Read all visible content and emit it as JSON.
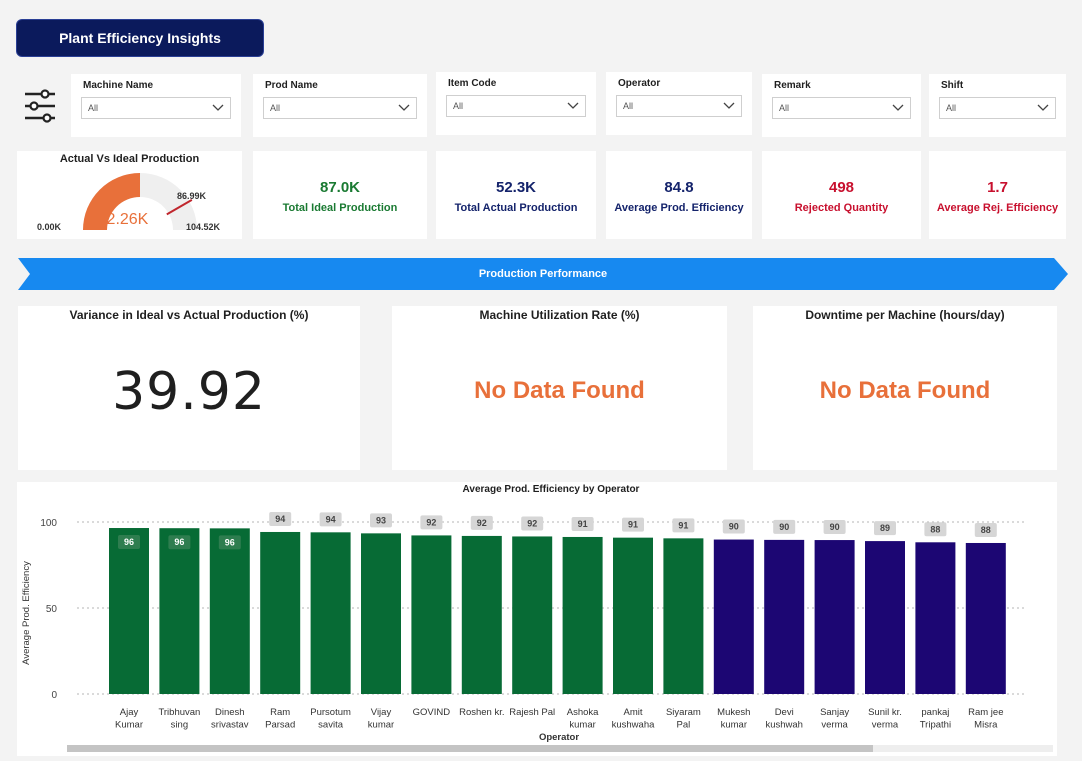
{
  "title": "Plant Efficiency Insights",
  "icons": {
    "filter": "sliders-filter-icon",
    "dropdown": "chevron-down-icon"
  },
  "filters": [
    {
      "label": "Machine Name",
      "value": "All"
    },
    {
      "label": "Prod Name",
      "value": "All"
    },
    {
      "label": "Item Code",
      "value": "All"
    },
    {
      "label": "Operator",
      "value": "All"
    },
    {
      "label": "Remark",
      "value": "All"
    },
    {
      "label": "Shift",
      "value": "All"
    }
  ],
  "gauge": {
    "title": "Actual Vs Ideal Production",
    "value": 52.26,
    "value_label": "52.26K",
    "min": 0,
    "min_label": "0.00K",
    "max": 104.52,
    "max_label": "104.52K",
    "target": 86.99,
    "target_label": "86.99K",
    "fill_color": "#e8703a",
    "track_color": "#efefef",
    "target_color": "#c0262d"
  },
  "kpis": [
    {
      "value": "87.0K",
      "label": "Total Ideal Production",
      "color": "#1a7a32"
    },
    {
      "value": "52.3K",
      "label": "Total Actual Production",
      "color": "#14236b"
    },
    {
      "value": "84.8",
      "label": "Average Prod. Efficiency",
      "color": "#14236b"
    },
    {
      "value": "498",
      "label": "Rejected Quantity",
      "color": "#c8102e"
    },
    {
      "value": "1.7",
      "label": "Average Rej. Efficiency",
      "color": "#c8102e"
    }
  ],
  "banner": {
    "label": "Production Performance",
    "color": "#1789f0"
  },
  "variance": {
    "title": "Variance in Ideal vs Actual Production (%)",
    "value": "39.92"
  },
  "utilization": {
    "title": "Machine Utilization Rate (%)",
    "value": "No Data Found"
  },
  "downtime": {
    "title": "Downtime per Machine (hours/day)",
    "value": "No Data Found"
  },
  "chart_data": {
    "type": "bar",
    "title": "Average Prod. Efficiency by Operator",
    "xlabel": "Operator",
    "ylabel": "Average Prod. Efficiency",
    "ylim": [
      0,
      100
    ],
    "yticks": [
      0,
      50,
      100
    ],
    "grid": true,
    "categories": [
      [
        "Ajay",
        "Kumar"
      ],
      [
        "Tribhuvan",
        "sing"
      ],
      [
        "Dinesh",
        "srivastav"
      ],
      [
        "Ram",
        "Parsad"
      ],
      [
        "Pursotum",
        "savita"
      ],
      [
        "Vijay",
        "kumar"
      ],
      [
        "GOVIND"
      ],
      [
        "Roshen kr."
      ],
      [
        "Rajesh Pal"
      ],
      [
        "Ashoka",
        "kumar"
      ],
      [
        "Amit",
        "kushwaha"
      ],
      [
        "Siyaram",
        "Pal"
      ],
      [
        "Mukesh",
        "kumar"
      ],
      [
        "Devi",
        "kushwah"
      ],
      [
        "Sanjay",
        "verma"
      ],
      [
        "Sunil kr.",
        "verma"
      ],
      [
        "pankaj",
        "Tripathi"
      ],
      [
        "Ram jee",
        "Misra"
      ]
    ],
    "values": [
      96.5,
      96.4,
      96.3,
      94.2,
      94.0,
      93.4,
      92.2,
      91.9,
      91.6,
      91.3,
      90.9,
      90.5,
      89.8,
      89.6,
      89.5,
      88.9,
      88.2,
      87.8
    ],
    "labels": [
      "96",
      "96",
      "96",
      "94",
      "94",
      "93",
      "92",
      "92",
      "92",
      "91",
      "91",
      "91",
      "90",
      "90",
      "90",
      "89",
      "88",
      "88"
    ],
    "colors": [
      "#076b35",
      "#076b35",
      "#076b35",
      "#076b35",
      "#076b35",
      "#076b35",
      "#076b35",
      "#076b35",
      "#076b35",
      "#076b35",
      "#076b35",
      "#076b35",
      "#1c0673",
      "#1c0673",
      "#1c0673",
      "#1c0673",
      "#1c0673",
      "#1c0673"
    ]
  }
}
